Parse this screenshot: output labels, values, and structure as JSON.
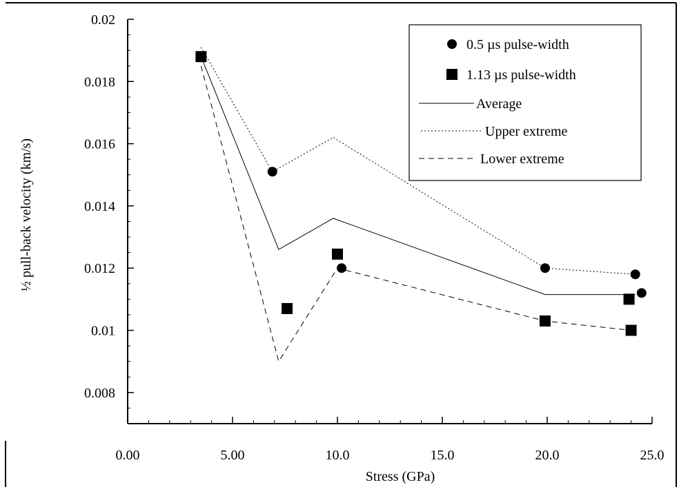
{
  "chart_data": {
    "type": "scatter",
    "xlabel": "Stress (GPa)",
    "ylabel": "½ pull-back velocity (km/s)",
    "xlim": [
      0,
      25
    ],
    "ylim": [
      0.007,
      0.02
    ],
    "x_ticks": [
      0,
      5,
      10,
      15,
      20,
      25
    ],
    "x_tick_labels": [
      "0.00",
      "5.00",
      "10.0",
      "15.0",
      "20.0",
      "25.0"
    ],
    "y_ticks": [
      0.008,
      0.01,
      0.012,
      0.014,
      0.016,
      0.018,
      0.02
    ],
    "y_tick_labels": [
      "0.008",
      "0.01",
      "0.012",
      "0.014",
      "0.016",
      "0.018",
      "0.02"
    ],
    "legend_position": "top-right",
    "grid": false,
    "series": [
      {
        "name": "0.5 µs pulse-width",
        "kind": "markers",
        "marker": "circle",
        "x": [
          6.9,
          10.2,
          19.9,
          24.2,
          24.5
        ],
        "y": [
          0.0151,
          0.012,
          0.012,
          0.0118,
          0.0112
        ]
      },
      {
        "name": "1.13 µs pulse-width",
        "kind": "markers",
        "marker": "square",
        "x": [
          3.5,
          7.6,
          10.0,
          19.9,
          23.9,
          24.0
        ],
        "y": [
          0.0188,
          0.0107,
          0.01245,
          0.0103,
          0.011,
          0.01
        ]
      },
      {
        "name": "Average",
        "kind": "line",
        "dash": "solid",
        "x": [
          3.5,
          7.2,
          9.8,
          19.9,
          24.2
        ],
        "y": [
          0.0188,
          0.0126,
          0.0136,
          0.01115,
          0.01115
        ]
      },
      {
        "name": "Upper extreme",
        "kind": "line",
        "dash": "dotted",
        "x": [
          3.5,
          6.9,
          9.8,
          19.9,
          24.2
        ],
        "y": [
          0.0191,
          0.0151,
          0.0162,
          0.012,
          0.0118
        ]
      },
      {
        "name": "Lower extreme",
        "kind": "line",
        "dash": "dashed",
        "x": [
          3.5,
          7.2,
          10.0,
          19.9,
          24.0
        ],
        "y": [
          0.0185,
          0.009,
          0.012,
          0.0103,
          0.01
        ]
      }
    ]
  }
}
